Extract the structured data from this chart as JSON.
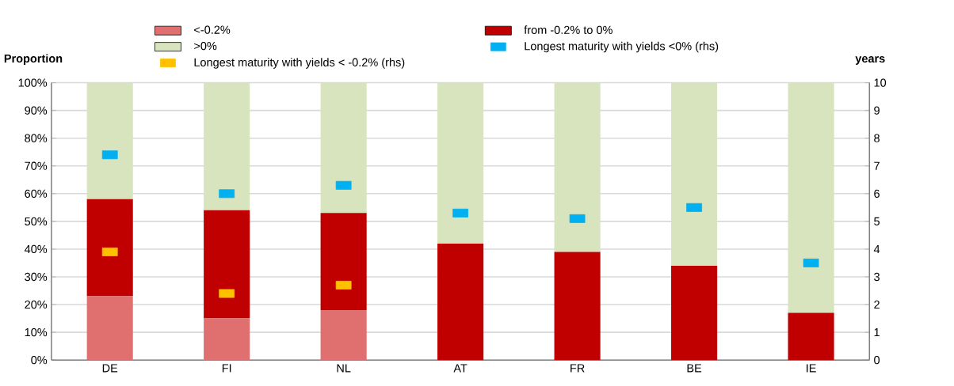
{
  "chart_data": {
    "type": "bar",
    "stacked": true,
    "ylabel": "Proportion",
    "y2label": "years",
    "categories": [
      "DE",
      "FI",
      "NL",
      "AT",
      "FR",
      "BE",
      "IE"
    ],
    "series": [
      {
        "name": "<-0.2%",
        "color": "#e07070",
        "values": [
          23,
          15,
          18,
          0,
          0,
          0,
          0
        ]
      },
      {
        "name": "from -0.2% to 0%",
        "color": "#c00000",
        "values": [
          35,
          39,
          35,
          42,
          39,
          34,
          17
        ]
      },
      {
        "name": ">0%",
        "color": "#d7e4bd",
        "values": [
          42,
          46,
          47,
          58,
          61,
          66,
          83
        ]
      },
      {
        "name": "Longest maturity with yields <0% (rhs)",
        "type": "scatter",
        "axis": "y2",
        "color": "#00b0f0",
        "values": [
          7.4,
          6.0,
          6.3,
          5.3,
          5.1,
          5.5,
          3.5
        ]
      },
      {
        "name": "Longest maturity with yields < -0.2% (rhs)",
        "type": "scatter",
        "axis": "y2",
        "color": "#ffc000",
        "values": [
          3.9,
          2.4,
          2.7,
          null,
          null,
          null,
          null
        ]
      }
    ],
    "ylim": [
      0,
      100
    ],
    "yticks": [
      {
        "value": 0,
        "label": "0%"
      },
      {
        "value": 10,
        "label": "10%"
      },
      {
        "value": 20,
        "label": "20%"
      },
      {
        "value": 30,
        "label": "30%"
      },
      {
        "value": 40,
        "label": "40%"
      },
      {
        "value": 50,
        "label": "50%"
      },
      {
        "value": 60,
        "label": "60%"
      },
      {
        "value": 70,
        "label": "70%"
      },
      {
        "value": 80,
        "label": "80%"
      },
      {
        "value": 90,
        "label": "90%"
      },
      {
        "value": 100,
        "label": "100%"
      }
    ],
    "y2lim": [
      0,
      10
    ],
    "y2ticks": [
      0,
      1,
      2,
      3,
      4,
      5,
      6,
      7,
      8,
      9,
      10
    ],
    "grid": "y",
    "legend": "top",
    "marker": "square"
  }
}
